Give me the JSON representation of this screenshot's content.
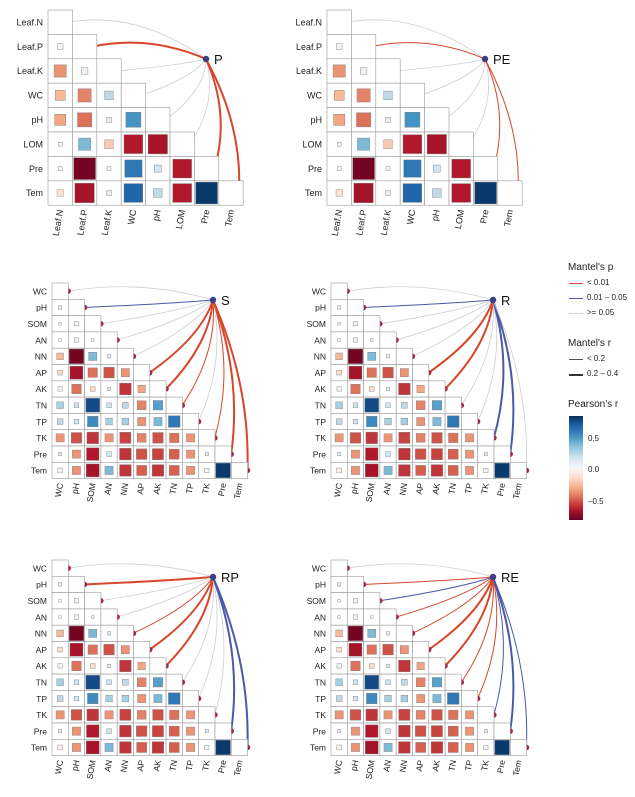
{
  "figure": {
    "legend": {
      "mantel_p": {
        "title": "Mantel's p",
        "items": [
          {
            "label": "< 0.01",
            "color": "#d7462b"
          },
          {
            "label": "0.01 – 0.05",
            "color": "#4a5aa6"
          },
          {
            "label": ">= 0.05",
            "color": "#cfcfcf"
          }
        ]
      },
      "mantel_r": {
        "title": "Mantel's r",
        "items": [
          {
            "label": "< 0.2",
            "width": 1
          },
          {
            "label": "0.2 – 0.4",
            "width": 2
          }
        ]
      },
      "pearson": {
        "title": "Pearson's r",
        "ticks": [
          "0.5",
          "0.0",
          "–0.5"
        ],
        "tick_values": [
          0.5,
          0.0,
          -0.5
        ],
        "range": [
          -0.7,
          0.9
        ]
      }
    }
  },
  "chart_data": [
    {
      "type": "heatmap",
      "panel": "P",
      "variables": [
        "Leaf.N",
        "Leaf.P",
        "Leaf.K",
        "WC",
        "pH",
        "LOM",
        "Pre",
        "Tem"
      ],
      "values": [
        [
          null
        ],
        [
          0.01,
          null
        ],
        [
          -0.3,
          0.02,
          null
        ],
        [
          -0.2,
          -0.35,
          0.15,
          null
        ],
        [
          -0.25,
          -0.4,
          0.05,
          0.45,
          null
        ],
        [
          0.0,
          0.3,
          -0.15,
          -0.7,
          -0.75,
          null
        ],
        [
          0.0,
          -0.95,
          0.0,
          0.6,
          0.1,
          -0.7,
          null
        ],
        [
          -0.08,
          -0.75,
          0.05,
          0.7,
          0.15,
          -0.7,
          0.95,
          null
        ]
      ],
      "links": [
        {
          "target": "Leaf.N",
          "p": ">= 0.05",
          "r": "< 0.2"
        },
        {
          "target": "Leaf.P",
          "p": "< 0.01",
          "r": "0.2 – 0.4"
        },
        {
          "target": "Leaf.K",
          "p": ">= 0.05",
          "r": "< 0.2"
        },
        {
          "target": "WC",
          "p": ">= 0.05",
          "r": "< 0.2"
        },
        {
          "target": "pH",
          "p": ">= 0.05",
          "r": "< 0.2"
        },
        {
          "target": "LOM",
          "p": ">= 0.05",
          "r": "< 0.2"
        },
        {
          "target": "Pre",
          "p": "< 0.01",
          "r": "0.2 – 0.4"
        },
        {
          "target": "Tem",
          "p": "< 0.01",
          "r": "0.2 – 0.4"
        }
      ]
    },
    {
      "type": "heatmap",
      "panel": "PE",
      "variables": [
        "Leaf.N",
        "Leaf.P",
        "Leaf.K",
        "WC",
        "pH",
        "LOM",
        "Pre",
        "Tem"
      ],
      "values": [
        [
          null
        ],
        [
          0.01,
          null
        ],
        [
          -0.3,
          0.02,
          null
        ],
        [
          -0.2,
          -0.35,
          0.15,
          null
        ],
        [
          -0.25,
          -0.4,
          0.05,
          0.45,
          null
        ],
        [
          0.0,
          0.3,
          -0.15,
          -0.7,
          -0.75,
          null
        ],
        [
          0.0,
          -0.95,
          0.0,
          0.6,
          0.1,
          -0.7,
          null
        ],
        [
          -0.08,
          -0.75,
          0.05,
          0.7,
          0.15,
          -0.7,
          0.95,
          null
        ]
      ],
      "links": [
        {
          "target": "Leaf.N",
          "p": ">= 0.05",
          "r": "< 0.2"
        },
        {
          "target": "Leaf.P",
          "p": "< 0.01",
          "r": "< 0.2"
        },
        {
          "target": "Leaf.K",
          "p": ">= 0.05",
          "r": "< 0.2"
        },
        {
          "target": "WC",
          "p": ">= 0.05",
          "r": "< 0.2"
        },
        {
          "target": "pH",
          "p": ">= 0.05",
          "r": "< 0.2"
        },
        {
          "target": "LOM",
          "p": ">= 0.05",
          "r": "< 0.2"
        },
        {
          "target": "Pre",
          "p": "< 0.01",
          "r": "< 0.2"
        },
        {
          "target": "Tem",
          "p": "< 0.01",
          "r": "< 0.2"
        }
      ]
    },
    {
      "type": "heatmap",
      "panel": "S",
      "variables": [
        "WC",
        "pH",
        "SOM",
        "AN",
        "NN",
        "AP",
        "AK",
        "TN",
        "TP",
        "TK",
        "Pre",
        "Tem"
      ],
      "values": [
        [
          null
        ],
        [
          -0.05,
          null
        ],
        [
          0.0,
          0.02,
          null
        ],
        [
          0.0,
          -0.02,
          0.0,
          null
        ],
        [
          -0.2,
          -0.95,
          0.3,
          0.05,
          null
        ],
        [
          -0.1,
          -0.75,
          -0.4,
          -0.5,
          -0.3,
          null
        ],
        [
          0.02,
          -0.4,
          -0.1,
          0.05,
          -0.6,
          -0.25,
          null
        ],
        [
          0.2,
          0.1,
          0.85,
          0.1,
          0.15,
          -0.35,
          0.4,
          null
        ],
        [
          0.15,
          0.1,
          0.5,
          0.2,
          0.2,
          -0.3,
          0.3,
          0.6,
          null
        ],
        [
          -0.3,
          -0.5,
          -0.6,
          -0.3,
          -0.55,
          -0.35,
          -0.5,
          -0.4,
          -0.3,
          null
        ],
        [
          0.05,
          -0.3,
          -0.7,
          0.1,
          -0.6,
          -0.5,
          -0.55,
          -0.45,
          -0.3,
          0.05,
          null
        ],
        [
          -0.03,
          -0.3,
          -0.75,
          0.3,
          -0.6,
          -0.45,
          -0.6,
          -0.45,
          -0.3,
          0.02,
          0.95,
          null
        ]
      ],
      "links": [
        {
          "target": "WC",
          "p": ">= 0.05",
          "r": "< 0.2"
        },
        {
          "target": "pH",
          "p": "0.01 – 0.05",
          "r": "< 0.2"
        },
        {
          "target": "SOM",
          "p": ">= 0.05",
          "r": "< 0.2"
        },
        {
          "target": "AN",
          "p": ">= 0.05",
          "r": "< 0.2"
        },
        {
          "target": "NN",
          "p": ">= 0.05",
          "r": "< 0.2"
        },
        {
          "target": "AP",
          "p": "< 0.01",
          "r": "0.2 – 0.4"
        },
        {
          "target": "AK",
          "p": "< 0.01",
          "r": "0.2 – 0.4"
        },
        {
          "target": "TN",
          "p": "< 0.01",
          "r": "< 0.2"
        },
        {
          "target": "TP",
          "p": ">= 0.05",
          "r": "< 0.2"
        },
        {
          "target": "TK",
          "p": "< 0.01",
          "r": "< 0.2"
        },
        {
          "target": "Pre",
          "p": "< 0.01",
          "r": "0.2 – 0.4"
        },
        {
          "target": "Tem",
          "p": "< 0.01",
          "r": "0.2 – 0.4"
        }
      ]
    },
    {
      "type": "heatmap",
      "panel": "R",
      "variables": [
        "WC",
        "pH",
        "SOM",
        "AN",
        "NN",
        "AP",
        "AK",
        "TN",
        "TP",
        "TK",
        "Pre",
        "Tem"
      ],
      "values": [
        [
          null
        ],
        [
          -0.05,
          null
        ],
        [
          0.0,
          0.02,
          null
        ],
        [
          0.0,
          -0.02,
          0.0,
          null
        ],
        [
          -0.2,
          -0.95,
          0.3,
          0.05,
          null
        ],
        [
          -0.1,
          -0.75,
          -0.4,
          -0.5,
          -0.3,
          null
        ],
        [
          0.02,
          -0.4,
          -0.1,
          0.05,
          -0.6,
          -0.25,
          null
        ],
        [
          0.2,
          0.1,
          0.85,
          0.1,
          0.15,
          -0.35,
          0.4,
          null
        ],
        [
          0.15,
          0.1,
          0.5,
          0.2,
          0.2,
          -0.3,
          0.3,
          0.6,
          null
        ],
        [
          -0.3,
          -0.5,
          -0.6,
          -0.3,
          -0.55,
          -0.35,
          -0.5,
          -0.4,
          -0.3,
          null
        ],
        [
          0.05,
          -0.3,
          -0.7,
          0.1,
          -0.6,
          -0.5,
          -0.55,
          -0.45,
          -0.3,
          0.05,
          null
        ],
        [
          -0.03,
          -0.3,
          -0.75,
          0.3,
          -0.6,
          -0.45,
          -0.6,
          -0.45,
          -0.3,
          0.02,
          0.95,
          null
        ]
      ],
      "links": [
        {
          "target": "WC",
          "p": ">= 0.05",
          "r": "< 0.2"
        },
        {
          "target": "pH",
          "p": "0.01 – 0.05",
          "r": "< 0.2"
        },
        {
          "target": "SOM",
          "p": ">= 0.05",
          "r": "< 0.2"
        },
        {
          "target": "AN",
          "p": ">= 0.05",
          "r": "< 0.2"
        },
        {
          "target": "NN",
          "p": ">= 0.05",
          "r": "< 0.2"
        },
        {
          "target": "AP",
          "p": "< 0.01",
          "r": "0.2 – 0.4"
        },
        {
          "target": "AK",
          "p": "< 0.01",
          "r": "0.2 – 0.4"
        },
        {
          "target": "TN",
          "p": ">= 0.05",
          "r": "< 0.2"
        },
        {
          "target": "TP",
          "p": ">= 0.05",
          "r": "< 0.2"
        },
        {
          "target": "TK",
          "p": "0.01 – 0.05",
          "r": "0.2 – 0.4"
        },
        {
          "target": "Pre",
          "p": "0.01 – 0.05",
          "r": "0.2 – 0.4"
        },
        {
          "target": "Tem",
          "p": ">= 0.05",
          "r": "< 0.2"
        }
      ]
    },
    {
      "type": "heatmap",
      "panel": "RP",
      "variables": [
        "WC",
        "pH",
        "SOM",
        "AN",
        "NN",
        "AP",
        "AK",
        "TN",
        "TP",
        "TK",
        "Pre",
        "Tem"
      ],
      "values": [
        [
          null
        ],
        [
          -0.05,
          null
        ],
        [
          0.0,
          0.02,
          null
        ],
        [
          0.0,
          -0.02,
          0.0,
          null
        ],
        [
          -0.2,
          -0.95,
          0.3,
          0.05,
          null
        ],
        [
          -0.1,
          -0.75,
          -0.4,
          -0.5,
          -0.3,
          null
        ],
        [
          0.02,
          -0.4,
          -0.1,
          0.05,
          -0.6,
          -0.25,
          null
        ],
        [
          0.2,
          0.1,
          0.85,
          0.1,
          0.15,
          -0.35,
          0.4,
          null
        ],
        [
          0.15,
          0.1,
          0.5,
          0.2,
          0.2,
          -0.3,
          0.3,
          0.6,
          null
        ],
        [
          -0.3,
          -0.5,
          -0.6,
          -0.3,
          -0.55,
          -0.35,
          -0.5,
          -0.4,
          -0.3,
          null
        ],
        [
          0.05,
          -0.3,
          -0.7,
          0.1,
          -0.6,
          -0.5,
          -0.55,
          -0.45,
          -0.3,
          0.05,
          null
        ],
        [
          -0.03,
          -0.3,
          -0.75,
          0.3,
          -0.6,
          -0.45,
          -0.6,
          -0.45,
          -0.3,
          0.02,
          0.95,
          null
        ]
      ],
      "links": [
        {
          "target": "WC",
          "p": ">= 0.05",
          "r": "< 0.2"
        },
        {
          "target": "pH",
          "p": "< 0.01",
          "r": "0.2 – 0.4"
        },
        {
          "target": "SOM",
          "p": ">= 0.05",
          "r": "< 0.2"
        },
        {
          "target": "AN",
          "p": ">= 0.05",
          "r": "< 0.2"
        },
        {
          "target": "NN",
          "p": "< 0.01",
          "r": "< 0.2"
        },
        {
          "target": "AP",
          "p": "< 0.01",
          "r": "0.2 – 0.4"
        },
        {
          "target": "AK",
          "p": "< 0.01",
          "r": "0.2 – 0.4"
        },
        {
          "target": "TN",
          "p": ">= 0.05",
          "r": "< 0.2"
        },
        {
          "target": "TP",
          "p": ">= 0.05",
          "r": "< 0.2"
        },
        {
          "target": "TK",
          "p": ">= 0.05",
          "r": "< 0.2"
        },
        {
          "target": "Pre",
          "p": "0.01 – 0.05",
          "r": "0.2 – 0.4"
        },
        {
          "target": "Tem",
          "p": "0.01 – 0.05",
          "r": "0.2 – 0.4"
        }
      ]
    },
    {
      "type": "heatmap",
      "panel": "RE",
      "variables": [
        "WC",
        "pH",
        "SOM",
        "AN",
        "NN",
        "AP",
        "AK",
        "TN",
        "TP",
        "TK",
        "Pre",
        "Tem"
      ],
      "values": [
        [
          null
        ],
        [
          -0.05,
          null
        ],
        [
          0.0,
          0.02,
          null
        ],
        [
          0.0,
          -0.02,
          0.0,
          null
        ],
        [
          -0.2,
          -0.95,
          0.3,
          0.05,
          null
        ],
        [
          -0.1,
          -0.75,
          -0.4,
          -0.5,
          -0.3,
          null
        ],
        [
          0.02,
          -0.4,
          -0.1,
          0.05,
          -0.6,
          -0.25,
          null
        ],
        [
          0.2,
          0.1,
          0.85,
          0.1,
          0.15,
          -0.35,
          0.4,
          null
        ],
        [
          0.15,
          0.1,
          0.5,
          0.2,
          0.2,
          -0.3,
          0.3,
          0.6,
          null
        ],
        [
          -0.3,
          -0.5,
          -0.6,
          -0.3,
          -0.55,
          -0.35,
          -0.5,
          -0.4,
          -0.3,
          null
        ],
        [
          0.05,
          -0.3,
          -0.7,
          0.1,
          -0.6,
          -0.5,
          -0.55,
          -0.45,
          -0.3,
          0.05,
          null
        ],
        [
          -0.03,
          -0.3,
          -0.75,
          0.3,
          -0.6,
          -0.45,
          -0.6,
          -0.45,
          -0.3,
          0.02,
          0.95,
          null
        ]
      ],
      "links": [
        {
          "target": "WC",
          "p": ">= 0.05",
          "r": "< 0.2"
        },
        {
          "target": "pH",
          "p": "< 0.01",
          "r": "< 0.2"
        },
        {
          "target": "SOM",
          "p": "0.01 – 0.05",
          "r": "< 0.2"
        },
        {
          "target": "AN",
          "p": "< 0.01",
          "r": "< 0.2"
        },
        {
          "target": "NN",
          "p": "< 0.01",
          "r": "< 0.2"
        },
        {
          "target": "AP",
          "p": "< 0.01",
          "r": "0.2 – 0.4"
        },
        {
          "target": "AK",
          "p": "< 0.01",
          "r": "0.2 – 0.4"
        },
        {
          "target": "TN",
          "p": "< 0.01",
          "r": "< 0.2"
        },
        {
          "target": "TP",
          "p": "< 0.01",
          "r": "< 0.2"
        },
        {
          "target": "TK",
          "p": "0.01 – 0.05",
          "r": "< 0.2"
        },
        {
          "target": "Pre",
          "p": "0.01 – 0.05",
          "r": "0.2 – 0.4"
        },
        {
          "target": "Tem",
          "p": "0.01 – 0.05",
          "r": "< 0.2"
        }
      ]
    }
  ]
}
